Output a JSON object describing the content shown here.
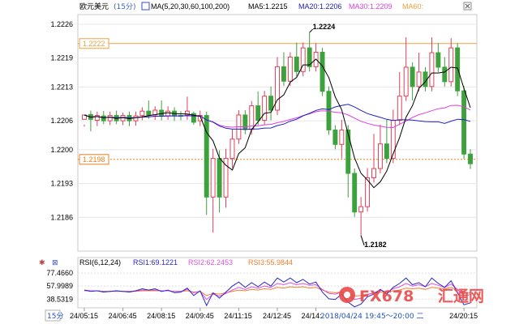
{
  "header": {
    "symbol": "欧元美元",
    "period": "(15分)",
    "ma_label": "MA(5,20,30,60,100,200)",
    "ma5": "MA5:1.2215",
    "ma20": "MA20:1.2206",
    "ma30": "MA30:1.2209",
    "ma60": "MA60:"
  },
  "rsi_header": {
    "label": "RSI(6,12,24)",
    "rsi1": "RSI1:69.1221",
    "rsi2": "RSI2:62.2453",
    "rsi3": "RSI3:55.9844"
  },
  "footer": {
    "period_button": "15分",
    "times": [
      "24/05:15",
      "24/06:45",
      "24/08:15",
      "24/09:45",
      "24/11:15",
      "24/12:45",
      "24/14:",
      "24/20:15"
    ],
    "range": "2018/04/24 19:45～20:00 二",
    "watermark_brand": "FX678",
    "watermark_cn": "汇通网"
  },
  "colors": {
    "up": "#e0405a",
    "down": "#3da23d",
    "ma5": "#000000",
    "ma20": "#2020c0",
    "ma30": "#e040e0",
    "ma60": "#f0a040",
    "ma100": "#ff8000",
    "ma200": "#909090",
    "rsi1": "#2828c8",
    "rsi2": "#e050e0",
    "rsi3": "#f08030"
  },
  "chart_data": [
    {
      "type": "candlestick",
      "title": "欧元美元 (15分)",
      "y_ticks": [
        "1.2226",
        "1.2219",
        "1.2213",
        "1.2206",
        "1.2200",
        "1.2193",
        "1.2186"
      ],
      "ylim": [
        1.2179,
        1.2228
      ],
      "price_tags": [
        "1.2222",
        "1.2198"
      ],
      "annotations": [
        "1.2224",
        "1.2182"
      ],
      "candles": [
        [
          1.22063,
          1.22072,
          1.22052,
          1.22048
        ],
        [
          1.22073,
          1.22063,
          1.22081,
          1.22038
        ],
        [
          1.22061,
          1.22071,
          1.22079,
          1.22049
        ],
        [
          1.2207,
          1.2206,
          1.2208,
          1.22053
        ],
        [
          1.2206,
          1.22071,
          1.22079,
          1.22051
        ],
        [
          1.22071,
          1.2206,
          1.22081,
          1.22053
        ],
        [
          1.2206,
          1.22071,
          1.22077,
          1.22051
        ],
        [
          1.22071,
          1.2206,
          1.22079,
          1.22049
        ],
        [
          1.2206,
          1.2207,
          1.22079,
          1.2205
        ],
        [
          1.22071,
          1.2208,
          1.22088,
          1.22061
        ],
        [
          1.2208,
          1.22072,
          1.22102,
          1.22064
        ],
        [
          1.22072,
          1.22082,
          1.2209,
          1.22062
        ],
        [
          1.22082,
          1.2207,
          1.22102,
          1.22061
        ],
        [
          1.2207,
          1.2208,
          1.2209,
          1.22062
        ],
        [
          1.2208,
          1.2207,
          1.22088,
          1.2206
        ],
        [
          1.22071,
          1.2207,
          1.2208,
          1.22061
        ],
        [
          1.22072,
          1.2208,
          1.2211,
          1.22062
        ],
        [
          1.22075,
          1.22057,
          1.22079,
          1.22052
        ],
        [
          1.2206,
          1.22071,
          1.22081,
          1.22049
        ],
        [
          1.22071,
          1.21902,
          1.22079,
          1.21865
        ],
        [
          1.21902,
          1.21982,
          1.22002,
          1.21828
        ],
        [
          1.21982,
          1.21902,
          1.21999,
          1.2187
        ],
        [
          1.21902,
          1.21982,
          1.22002,
          1.2188
        ],
        [
          1.21982,
          1.22022,
          1.22042,
          1.21962
        ],
        [
          1.22022,
          1.22072,
          1.22082,
          1.22012
        ],
        [
          1.22072,
          1.22042,
          1.22082,
          1.22032
        ],
        [
          1.22042,
          1.22091,
          1.22101,
          1.22031
        ],
        [
          1.22091,
          1.22061,
          1.22121,
          1.22051
        ],
        [
          1.22061,
          1.22111,
          1.22122,
          1.22051
        ],
        [
          1.22111,
          1.22082,
          1.22131,
          1.22061
        ],
        [
          1.22082,
          1.22172,
          1.22192,
          1.22072
        ],
        [
          1.22172,
          1.22142,
          1.22202,
          1.22132
        ],
        [
          1.22142,
          1.22192,
          1.22202,
          1.22132
        ],
        [
          1.22192,
          1.22162,
          1.22222,
          1.22152
        ],
        [
          1.22162,
          1.22211,
          1.22222,
          1.22152
        ],
        [
          1.22211,
          1.22172,
          1.22243,
          1.22162
        ],
        [
          1.22172,
          1.22202,
          1.22221,
          1.22162
        ],
        [
          1.22202,
          1.22121,
          1.22211,
          1.22111
        ],
        [
          1.22121,
          1.22041,
          1.22131,
          1.22031
        ],
        [
          1.22041,
          1.22011,
          1.22051,
          1.22001
        ],
        [
          1.22011,
          1.22041,
          1.22062,
          1.21982
        ],
        [
          1.22041,
          1.21951,
          1.22051,
          1.21901
        ],
        [
          1.21951,
          1.21871,
          1.21961,
          1.21861
        ],
        [
          1.21871,
          1.21882,
          1.21902,
          1.21822
        ],
        [
          1.21882,
          1.21942,
          1.21962,
          1.21872
        ],
        [
          1.21942,
          1.21961,
          1.22033,
          1.21932
        ],
        [
          1.21961,
          1.22012,
          1.22052,
          1.21951
        ],
        [
          1.22012,
          1.21982,
          1.22062,
          1.21972
        ],
        [
          1.21982,
          1.22061,
          1.22083,
          1.21972
        ],
        [
          1.22061,
          1.22111,
          1.22161,
          1.22051
        ],
        [
          1.22111,
          1.22171,
          1.22233,
          1.22101
        ],
        [
          1.22171,
          1.22131,
          1.22181,
          1.22102
        ],
        [
          1.22131,
          1.22161,
          1.22201,
          1.22121
        ],
        [
          1.22161,
          1.22131,
          1.22171,
          1.22121
        ],
        [
          1.22131,
          1.22201,
          1.22233,
          1.22121
        ],
        [
          1.22201,
          1.22171,
          1.22221,
          1.22161
        ],
        [
          1.22171,
          1.22141,
          1.22192,
          1.22131
        ],
        [
          1.22141,
          1.22211,
          1.22231,
          1.22131
        ],
        [
          1.22211,
          1.22122,
          1.22221,
          1.22111
        ],
        [
          1.22122,
          1.21991,
          1.22132,
          1.21981
        ],
        [
          1.21991,
          1.21971,
          1.22001,
          1.2196
        ]
      ]
    },
    {
      "type": "line",
      "title": "RSI(6,12,24)",
      "y_ticks": [
        "77.4660",
        "57.9989",
        "38.5319"
      ],
      "ylim": [
        28,
        86
      ],
      "series": [
        {
          "name": "RSI1",
          "values": [
            52,
            50,
            51,
            49,
            50,
            51,
            50,
            49,
            51,
            54,
            52,
            54,
            50,
            52,
            48,
            49,
            55,
            44,
            51,
            29,
            48,
            40,
            49,
            58,
            64,
            56,
            63,
            57,
            64,
            58,
            70,
            64,
            70,
            63,
            68,
            61,
            64,
            49,
            39,
            38,
            46,
            34,
            27,
            31,
            42,
            46,
            53,
            46,
            56,
            62,
            70,
            60,
            63,
            57,
            70,
            62,
            56,
            66,
            48,
            30,
            33
          ]
        },
        {
          "name": "RSI2",
          "values": [
            52,
            51,
            51,
            50,
            50,
            51,
            50,
            50,
            51,
            52,
            52,
            52,
            51,
            51,
            50,
            50,
            53,
            48,
            50,
            38,
            46,
            43,
            47,
            52,
            56,
            53,
            57,
            55,
            58,
            56,
            62,
            60,
            63,
            60,
            62,
            59,
            60,
            53,
            47,
            46,
            49,
            43,
            38,
            40,
            45,
            48,
            52,
            49,
            54,
            57,
            62,
            58,
            60,
            57,
            62,
            59,
            56,
            61,
            53,
            44,
            45
          ]
        },
        {
          "name": "RSI3",
          "values": [
            51,
            51,
            51,
            50,
            50,
            50,
            50,
            50,
            50,
            51,
            51,
            51,
            51,
            51,
            50,
            50,
            51,
            49,
            50,
            44,
            47,
            46,
            48,
            50,
            52,
            51,
            53,
            52,
            54,
            53,
            56,
            55,
            57,
            56,
            57,
            55,
            56,
            52,
            49,
            48,
            49,
            46,
            43,
            44,
            46,
            47,
            49,
            48,
            51,
            52,
            55,
            54,
            55,
            53,
            56,
            55,
            54,
            56,
            52,
            47,
            48
          ]
        }
      ]
    }
  ]
}
